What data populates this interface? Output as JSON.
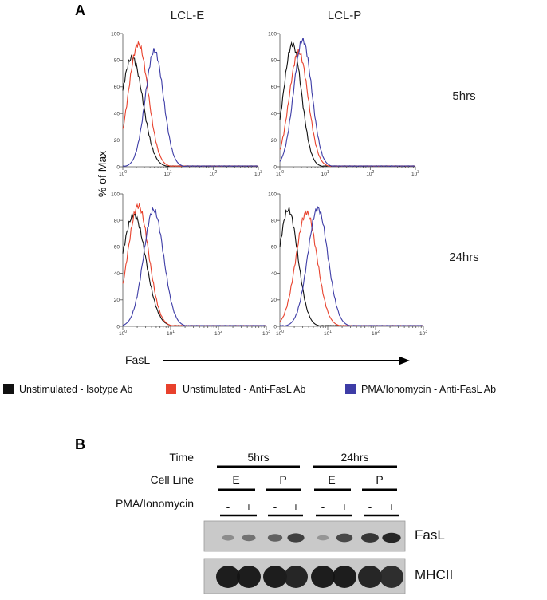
{
  "panel_a": {
    "letter": "A",
    "columns": [
      "LCL-E",
      "LCL-P"
    ],
    "rows": [
      "5hrs",
      "24hrs"
    ],
    "y_axis_label": "% of Max",
    "x_axis_label": "FasL",
    "y_ticks": [
      "0",
      "20",
      "40",
      "60",
      "80",
      "100"
    ],
    "x_ticks": [
      {
        "base": "10",
        "exp": "0"
      },
      {
        "base": "10",
        "exp": "1"
      },
      {
        "base": "10",
        "exp": "2"
      },
      {
        "base": "10",
        "exp": "3"
      }
    ],
    "legend": [
      {
        "label": "Unstimulated - Isotype Ab",
        "color": "#111111"
      },
      {
        "label": "Unstimulated - Anti-FasL Ab",
        "color": "#e8412c"
      },
      {
        "label": "PMA/Ionomycin - Anti-FasL Ab",
        "color": "#3d3ca6"
      }
    ]
  },
  "chart_data": [
    {
      "type": "line",
      "title": "LCL-E 5hrs",
      "xlabel": "FasL",
      "ylabel": "% of Max",
      "xscale": "log",
      "xlim": [
        1,
        1000
      ],
      "ylim": [
        0,
        100
      ],
      "series": [
        {
          "name": "Unstimulated - Isotype Ab",
          "color": "#111111",
          "peak_x": 1.6,
          "peak_y": 82,
          "width": 0.24
        },
        {
          "name": "Unstimulated - Anti-FasL Ab",
          "color": "#e8412c",
          "peak_x": 2.2,
          "peak_y": 92,
          "width": 0.22
        },
        {
          "name": "PMA/Ionomycin - Anti-FasL Ab",
          "color": "#3d3ca6",
          "peak_x": 5.0,
          "peak_y": 87,
          "width": 0.2
        }
      ]
    },
    {
      "type": "line",
      "title": "LCL-P 5hrs",
      "xlabel": "FasL",
      "ylabel": "% of Max",
      "xscale": "log",
      "xlim": [
        1,
        1000
      ],
      "ylim": [
        0,
        100
      ],
      "series": [
        {
          "name": "Unstimulated - Isotype Ab",
          "color": "#111111",
          "peak_x": 1.9,
          "peak_y": 92,
          "width": 0.2
        },
        {
          "name": "Unstimulated - Anti-FasL Ab",
          "color": "#e8412c",
          "peak_x": 2.6,
          "peak_y": 86,
          "width": 0.21
        },
        {
          "name": "PMA/Ionomycin - Anti-FasL Ab",
          "color": "#3d3ca6",
          "peak_x": 3.2,
          "peak_y": 95,
          "width": 0.2
        }
      ]
    },
    {
      "type": "line",
      "title": "LCL-E 24hrs",
      "xlabel": "FasL",
      "ylabel": "% of Max",
      "xscale": "log",
      "xlim": [
        1,
        1000
      ],
      "ylim": [
        0,
        100
      ],
      "series": [
        {
          "name": "Unstimulated - Isotype Ab",
          "color": "#111111",
          "peak_x": 1.7,
          "peak_y": 84,
          "width": 0.25
        },
        {
          "name": "Unstimulated - Anti-FasL Ab",
          "color": "#e8412c",
          "peak_x": 2.1,
          "peak_y": 91,
          "width": 0.22
        },
        {
          "name": "PMA/Ionomycin - Anti-FasL Ab",
          "color": "#3d3ca6",
          "peak_x": 4.4,
          "peak_y": 88,
          "width": 0.21
        }
      ]
    },
    {
      "type": "line",
      "title": "LCL-P 24hrs",
      "xlabel": "FasL",
      "ylabel": "% of Max",
      "xscale": "log",
      "xlim": [
        1,
        1000
      ],
      "ylim": [
        0,
        100
      ],
      "series": [
        {
          "name": "Unstimulated - Isotype Ab",
          "color": "#111111",
          "peak_x": 1.5,
          "peak_y": 88,
          "width": 0.2
        },
        {
          "name": "Unstimulated - Anti-FasL Ab",
          "color": "#e8412c",
          "peak_x": 3.6,
          "peak_y": 86,
          "width": 0.22
        },
        {
          "name": "PMA/Ionomycin - Anti-FasL Ab",
          "color": "#3d3ca6",
          "peak_x": 6.2,
          "peak_y": 89,
          "width": 0.21
        }
      ]
    }
  ],
  "panel_b": {
    "letter": "B",
    "row_labels": [
      "Time",
      "Cell Line",
      "PMA/Ionomycin"
    ],
    "times": [
      "5hrs",
      "24hrs"
    ],
    "cell_lines": [
      "E",
      "P",
      "E",
      "P"
    ],
    "treatments": [
      "-",
      "+",
      "-",
      "+",
      "-",
      "+",
      "-",
      "+"
    ],
    "blots": [
      {
        "label": "FasL",
        "band_intensity": [
          0.35,
          0.5,
          0.6,
          0.8,
          0.3,
          0.75,
          0.85,
          0.95
        ]
      },
      {
        "label": "MHCII",
        "band_intensity": [
          1,
          1,
          1,
          0.95,
          1,
          1,
          0.95,
          0.9
        ]
      }
    ]
  }
}
